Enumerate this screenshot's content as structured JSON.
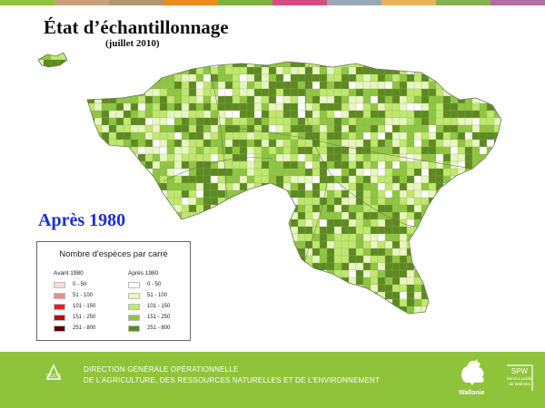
{
  "slide": {
    "title": "État d’échantillonnage",
    "subtitle": "(juillet 2010)",
    "period_label": "Après 1980",
    "top_bar_colors": [
      "#8fc43a",
      "#c8a078",
      "#b49670",
      "#ef8a1e",
      "#7db33a",
      "#d64c7f",
      "#9aa8b4",
      "#e8b25a",
      "#86b14a",
      "#b76ca0"
    ]
  },
  "legend": {
    "title": "Nombre d'espèces par carré",
    "columns": [
      {
        "heading": "Avant 1980",
        "classes": [
          {
            "label": "0 - 50",
            "color": "#f9dada"
          },
          {
            "label": "51 - 100",
            "color": "#f08a8a"
          },
          {
            "label": "101 - 150",
            "color": "#e52020"
          },
          {
            "label": "151 - 250",
            "color": "#b00e0e"
          },
          {
            "label": "251 - 800",
            "color": "#5c0000"
          }
        ]
      },
      {
        "heading": "Après 1980",
        "classes": [
          {
            "label": "0 - 50",
            "color": "#ffffff"
          },
          {
            "label": "51 - 100",
            "color": "#e8f7c0"
          },
          {
            "label": "101 - 150",
            "color": "#bfe86c"
          },
          {
            "label": "151 - 250",
            "color": "#8ec63f"
          },
          {
            "label": "251 - 800",
            "color": "#5c8a1e"
          }
        ]
      }
    ]
  },
  "footer": {
    "background": "#8fc43a",
    "dgo_badge": "DGO 3",
    "line1": "DIRECTION GÉNÉRALE OPÉRATIONNELLE",
    "line2": "DE L’AGRICULTURE, DES RESSOURCES NATURELLES ET DE L’ENVIRONNEMENT",
    "region_label": "Wallonie",
    "spw_label": "SPW",
    "spw_line1": "Service public",
    "spw_line2": "de Wallonie"
  }
}
